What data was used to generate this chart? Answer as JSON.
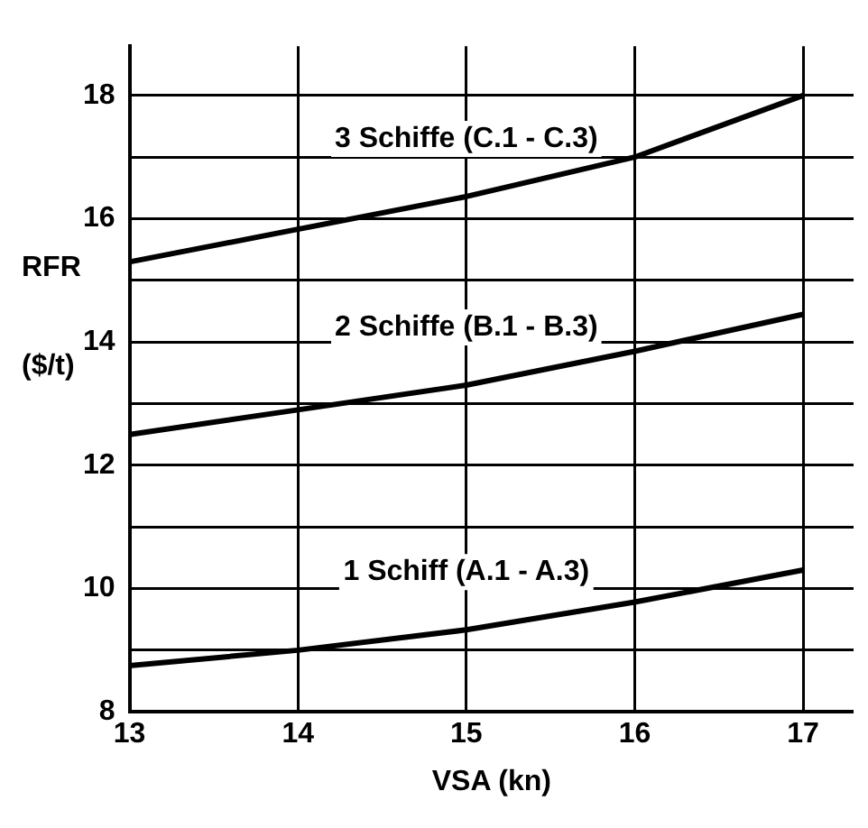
{
  "chart_data": {
    "type": "line",
    "xlabel": "VSA (kn)",
    "ylabel": "RFR ($/t)",
    "x": [
      13,
      14,
      15,
      16,
      17
    ],
    "series": [
      {
        "name": "3 Schiffe (C.1 - C.3)",
        "color": "#000000",
        "values": [
          15.3,
          15.83,
          16.36,
          17.0,
          18.0
        ]
      },
      {
        "name": "2 Schiffe (B.1 - B.3)",
        "color": "#000000",
        "values": [
          12.5,
          12.9,
          13.3,
          13.85,
          14.45
        ]
      },
      {
        "name": "1 Schiff (A.1 - A.3)",
        "color": "#000000",
        "values": [
          8.75,
          9.0,
          9.33,
          9.78,
          10.3
        ]
      }
    ],
    "xlim": [
      13,
      17.3
    ],
    "ylim": [
      8,
      18.8
    ],
    "xticks": [
      13,
      14,
      15,
      16,
      17
    ],
    "yticks": [
      8,
      {
        "value": 9,
        "label": null
      },
      10,
      {
        "value": 11,
        "label": null
      },
      12,
      {
        "value": 13,
        "label": null
      },
      14,
      {
        "value": 15,
        "label": null
      },
      16,
      {
        "value": 17,
        "label": null
      },
      18
    ],
    "grid": true,
    "legend": false,
    "marker": "none",
    "line_style": "solid"
  }
}
